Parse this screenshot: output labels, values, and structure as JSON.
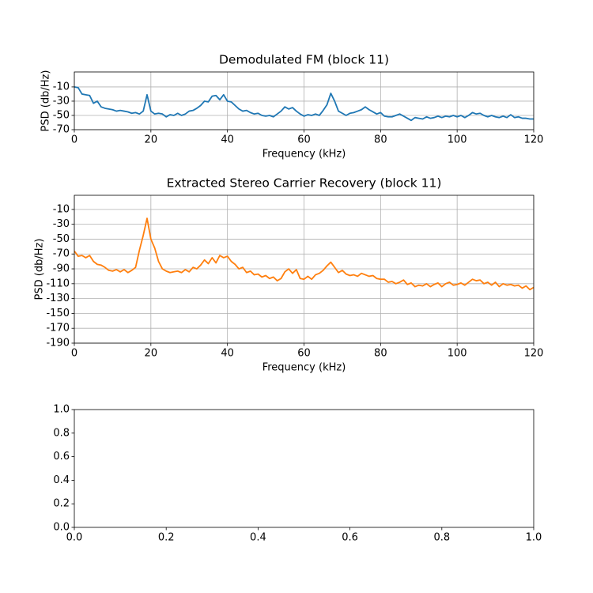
{
  "chart_data": [
    {
      "type": "line",
      "title": "Demodulated FM (block 11)",
      "x_label": "Frequency (kHz)",
      "y_label": "PSD (db/Hz)",
      "x": [
        0,
        1,
        2,
        3,
        4,
        5,
        6,
        7,
        8,
        9,
        10,
        11,
        12,
        13,
        14,
        15,
        16,
        17,
        18,
        19,
        20,
        21,
        22,
        23,
        24,
        25,
        26,
        27,
        28,
        29,
        30,
        31,
        32,
        33,
        34,
        35,
        36,
        37,
        38,
        39,
        40,
        41,
        42,
        43,
        44,
        45,
        46,
        47,
        48,
        49,
        50,
        51,
        52,
        53,
        54,
        55,
        56,
        57,
        58,
        59,
        60,
        61,
        62,
        63,
        64,
        65,
        66,
        67,
        68,
        69,
        70,
        71,
        72,
        73,
        74,
        75,
        76,
        77,
        78,
        79,
        80,
        81,
        82,
        83,
        84,
        85,
        86,
        87,
        88,
        89,
        90,
        91,
        92,
        93,
        94,
        95,
        96,
        97,
        98,
        99,
        100,
        101,
        102,
        103,
        104,
        105,
        106,
        107,
        108,
        109,
        110,
        111,
        112,
        113,
        114,
        115,
        116,
        117,
        118,
        119,
        120
      ],
      "series": [
        {
          "color": "#1f77b4",
          "values": [
            -10,
            -11,
            -20,
            -21,
            -22,
            -33,
            -30,
            -38,
            -40,
            -41,
            -42,
            -44,
            -43,
            -44,
            -45,
            -47,
            -46,
            -48,
            -44,
            -21,
            -44,
            -48,
            -47,
            -48,
            -52,
            -49,
            -50,
            -47,
            -50,
            -48,
            -44,
            -43,
            -40,
            -36,
            -30,
            -31,
            -23,
            -22,
            -28,
            -21,
            -30,
            -31,
            -36,
            -41,
            -44,
            -43,
            -46,
            -48,
            -47,
            -50,
            -51,
            -50,
            -52,
            -48,
            -44,
            -38,
            -41,
            -39,
            -44,
            -48,
            -51,
            -49,
            -50,
            -48,
            -50,
            -43,
            -35,
            -19,
            -30,
            -44,
            -47,
            -50,
            -47,
            -46,
            -44,
            -42,
            -38,
            -42,
            -45,
            -48,
            -46,
            -51,
            -52,
            -52,
            -50,
            -48,
            -51,
            -54,
            -57,
            -53,
            -54,
            -55,
            -52,
            -54,
            -53,
            -51,
            -53,
            -51,
            -52,
            -50,
            -52,
            -50,
            -53,
            -50,
            -46,
            -48,
            -47,
            -50,
            -52,
            -50,
            -52,
            -53,
            -51,
            -53,
            -49,
            -53,
            -52,
            -54,
            -54,
            -55,
            -55
          ]
        }
      ],
      "xlim": [
        0,
        120
      ],
      "xticks": [
        0,
        20,
        40,
        60,
        80,
        100,
        120
      ],
      "ylim": [
        -70,
        11
      ],
      "yticks": [
        -70,
        -50,
        -30,
        -10
      ],
      "grid": true
    },
    {
      "type": "line",
      "title": "Extracted Stereo Carrier Recovery (block 11)",
      "x_label": "Frequency (kHz)",
      "y_label": "PSD (db/Hz)",
      "x": [
        0,
        1,
        2,
        3,
        4,
        5,
        6,
        7,
        8,
        9,
        10,
        11,
        12,
        13,
        14,
        15,
        16,
        17,
        18,
        19,
        20,
        21,
        22,
        23,
        24,
        25,
        26,
        27,
        28,
        29,
        30,
        31,
        32,
        33,
        34,
        35,
        36,
        37,
        38,
        39,
        40,
        41,
        42,
        43,
        44,
        45,
        46,
        47,
        48,
        49,
        50,
        51,
        52,
        53,
        54,
        55,
        56,
        57,
        58,
        59,
        60,
        61,
        62,
        63,
        64,
        65,
        66,
        67,
        68,
        69,
        70,
        71,
        72,
        73,
        74,
        75,
        76,
        77,
        78,
        79,
        80,
        81,
        82,
        83,
        84,
        85,
        86,
        87,
        88,
        89,
        90,
        91,
        92,
        93,
        94,
        95,
        96,
        97,
        98,
        99,
        100,
        101,
        102,
        103,
        104,
        105,
        106,
        107,
        108,
        109,
        110,
        111,
        112,
        113,
        114,
        115,
        116,
        117,
        118,
        119,
        120
      ],
      "series": [
        {
          "color": "#ff7f0e",
          "values": [
            -66,
            -73,
            -72,
            -75,
            -72,
            -80,
            -84,
            -85,
            -88,
            -92,
            -93,
            -91,
            -94,
            -91,
            -95,
            -92,
            -88,
            -65,
            -45,
            -22,
            -50,
            -62,
            -80,
            -90,
            -93,
            -95,
            -94,
            -93,
            -95,
            -91,
            -94,
            -88,
            -90,
            -85,
            -78,
            -83,
            -75,
            -82,
            -72,
            -75,
            -73,
            -80,
            -84,
            -90,
            -88,
            -95,
            -93,
            -98,
            -97,
            -101,
            -99,
            -103,
            -101,
            -106,
            -103,
            -94,
            -90,
            -96,
            -91,
            -103,
            -104,
            -100,
            -104,
            -98,
            -96,
            -92,
            -86,
            -81,
            -88,
            -95,
            -92,
            -97,
            -99,
            -98,
            -100,
            -96,
            -98,
            -100,
            -99,
            -103,
            -104,
            -104,
            -108,
            -107,
            -110,
            -108,
            -105,
            -111,
            -109,
            -114,
            -112,
            -113,
            -110,
            -114,
            -111,
            -109,
            -114,
            -110,
            -108,
            -112,
            -111,
            -109,
            -112,
            -108,
            -104,
            -106,
            -105,
            -110,
            -108,
            -112,
            -108,
            -114,
            -110,
            -112,
            -111,
            -113,
            -112,
            -116,
            -113,
            -118,
            -115
          ]
        }
      ],
      "xlim": [
        0,
        120
      ],
      "xticks": [
        0,
        20,
        40,
        60,
        80,
        100,
        120
      ],
      "ylim": [
        -190,
        9
      ],
      "yticks": [
        -190,
        -170,
        -150,
        -130,
        -110,
        -90,
        -70,
        -50,
        -30,
        -10
      ],
      "grid": true
    },
    {
      "type": "line",
      "xlim": [
        0,
        1
      ],
      "xticks": [
        {
          "value": 0,
          "label": "0.0"
        },
        {
          "value": 0.2,
          "label": "0.2"
        },
        {
          "value": 0.4,
          "label": "0.4"
        },
        {
          "value": 0.6,
          "label": "0.6"
        },
        {
          "value": 0.8,
          "label": "0.8"
        },
        {
          "value": 1,
          "label": "1.0"
        }
      ],
      "ylim": [
        0,
        1
      ],
      "yticks": [
        {
          "value": 0,
          "label": "0.0"
        },
        {
          "value": 0.2,
          "label": "0.2"
        },
        {
          "value": 0.4,
          "label": "0.4"
        },
        {
          "value": 0.6,
          "label": "0.6"
        },
        {
          "value": 0.8,
          "label": "0.8"
        },
        {
          "value": 1,
          "label": "1.0"
        }
      ],
      "grid": false
    }
  ]
}
